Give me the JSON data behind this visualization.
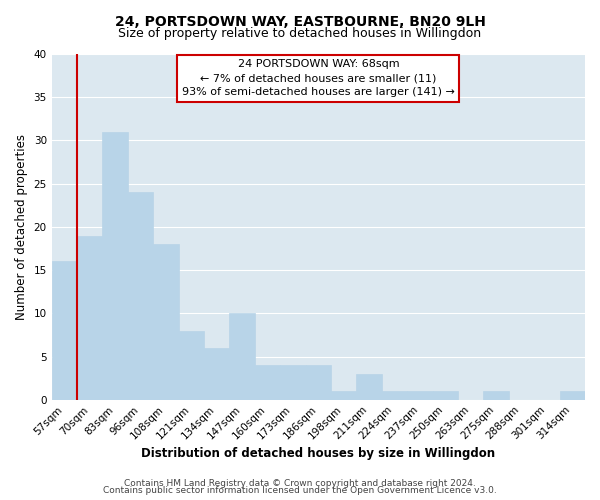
{
  "title": "24, PORTSDOWN WAY, EASTBOURNE, BN20 9LH",
  "subtitle": "Size of property relative to detached houses in Willingdon",
  "xlabel": "Distribution of detached houses by size in Willingdon",
  "ylabel": "Number of detached properties",
  "bar_labels": [
    "57sqm",
    "70sqm",
    "83sqm",
    "96sqm",
    "108sqm",
    "121sqm",
    "134sqm",
    "147sqm",
    "160sqm",
    "173sqm",
    "186sqm",
    "198sqm",
    "211sqm",
    "224sqm",
    "237sqm",
    "250sqm",
    "263sqm",
    "275sqm",
    "288sqm",
    "301sqm",
    "314sqm"
  ],
  "bar_heights": [
    16,
    19,
    31,
    24,
    18,
    8,
    6,
    10,
    4,
    4,
    4,
    1,
    3,
    1,
    1,
    1,
    0,
    1,
    0,
    0,
    1
  ],
  "bar_color": "#b8d4e8",
  "highlight_bar_color": "#cc0000",
  "ylim": [
    0,
    40
  ],
  "yticks": [
    0,
    5,
    10,
    15,
    20,
    25,
    30,
    35,
    40
  ],
  "annotation_title": "24 PORTSDOWN WAY: 68sqm",
  "annotation_line1": "← 7% of detached houses are smaller (11)",
  "annotation_line2": "93% of semi-detached houses are larger (141) →",
  "annotation_box_color": "#ffffff",
  "annotation_box_edge_color": "#cc0000",
  "vline_color": "#cc0000",
  "footer1": "Contains HM Land Registry data © Crown copyright and database right 2024.",
  "footer2": "Contains public sector information licensed under the Open Government Licence v3.0.",
  "plot_bg_color": "#dce8f0",
  "fig_bg_color": "#ffffff",
  "grid_color": "#ffffff",
  "title_fontsize": 10,
  "subtitle_fontsize": 9,
  "axis_label_fontsize": 8.5,
  "tick_fontsize": 7.5,
  "footer_fontsize": 6.5,
  "annotation_fontsize": 8
}
